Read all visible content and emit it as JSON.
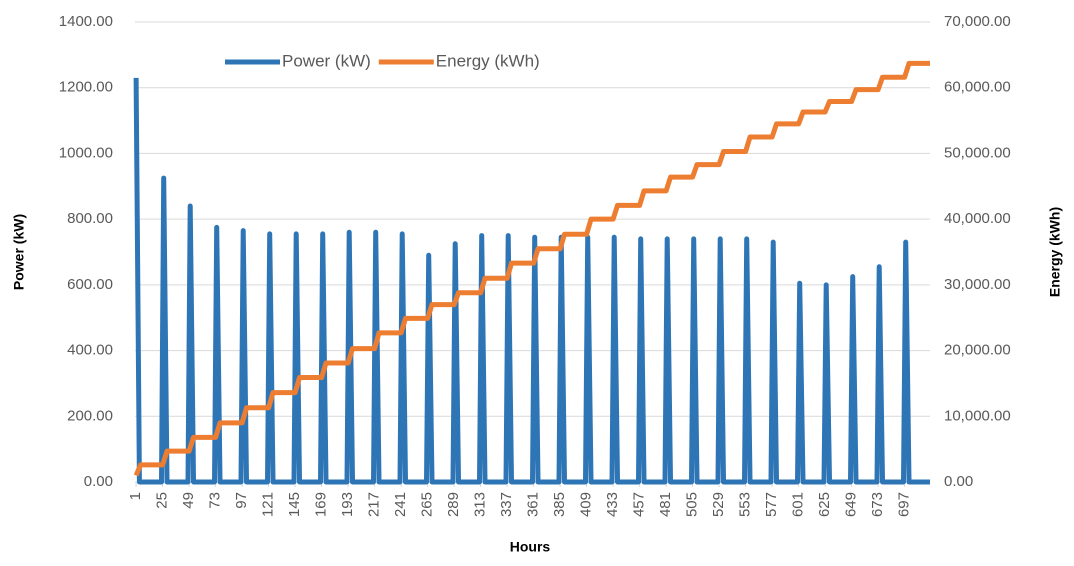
{
  "chart_data": {
    "type": "line",
    "x_label": "Hours",
    "y_label": "Power (kW)",
    "y2_label": "Energy (kWh)",
    "xlim": [
      0,
      720
    ],
    "xticks": [
      1,
      25,
      49,
      73,
      97,
      121,
      145,
      169,
      193,
      217,
      241,
      265,
      289,
      313,
      337,
      361,
      385,
      409,
      433,
      457,
      481,
      505,
      529,
      553,
      577,
      601,
      625,
      649,
      673,
      697
    ],
    "ylim": [
      0,
      1400
    ],
    "yticks": [
      {
        "value": 0,
        "label": "0.00"
      },
      {
        "value": 200,
        "label": "200.00"
      },
      {
        "value": 400,
        "label": "400.00"
      },
      {
        "value": 600,
        "label": "600.00"
      },
      {
        "value": 800,
        "label": "800.00"
      },
      {
        "value": 1000,
        "label": "1000.00"
      },
      {
        "value": 1200,
        "label": "1200.00"
      },
      {
        "value": 1400,
        "label": "1400.00"
      }
    ],
    "y2lim": [
      0,
      70000
    ],
    "y2ticks": [
      {
        "value": 0,
        "label": "0.00"
      },
      {
        "value": 10000,
        "label": "10,000.00"
      },
      {
        "value": 20000,
        "label": "20,000.00"
      },
      {
        "value": 30000,
        "label": "30,000.00"
      },
      {
        "value": 40000,
        "label": "40,000.00"
      },
      {
        "value": 50000,
        "label": "50,000.00"
      },
      {
        "value": 60000,
        "label": "60,000.00"
      },
      {
        "value": 70000,
        "label": "70,000.00"
      }
    ],
    "grid": true,
    "legend": "top",
    "series": [
      {
        "name": "Power (kW)",
        "color": "#2e75b6",
        "x": [
          1,
          4,
          24,
          26,
          29,
          48,
          50,
          53,
          72,
          74,
          77,
          96,
          98,
          101,
          120,
          122,
          125,
          144,
          146,
          149,
          168,
          170,
          173,
          192,
          194,
          197,
          216,
          218,
          221,
          240,
          242,
          245,
          264,
          266,
          269,
          288,
          290,
          293,
          312,
          314,
          317,
          336,
          338,
          341,
          360,
          362,
          365,
          384,
          386,
          389,
          408,
          410,
          413,
          432,
          434,
          437,
          456,
          458,
          461,
          480,
          482,
          485,
          504,
          506,
          509,
          528,
          530,
          533,
          552,
          554,
          557,
          576,
          578,
          581,
          600,
          602,
          605,
          624,
          626,
          629,
          648,
          650,
          653,
          672,
          674,
          677,
          696,
          698,
          701,
          720
        ],
        "values": [
          1230,
          0,
          0,
          925,
          0,
          0,
          840,
          0,
          0,
          775,
          0,
          0,
          765,
          0,
          0,
          755,
          0,
          0,
          755,
          0,
          0,
          755,
          0,
          0,
          760,
          0,
          0,
          760,
          0,
          0,
          755,
          0,
          0,
          690,
          0,
          0,
          725,
          0,
          0,
          750,
          0,
          0,
          750,
          0,
          0,
          745,
          0,
          0,
          745,
          0,
          0,
          745,
          0,
          0,
          745,
          0,
          0,
          740,
          0,
          0,
          740,
          0,
          0,
          740,
          0,
          0,
          740,
          0,
          0,
          740,
          0,
          0,
          730,
          0,
          0,
          605,
          0,
          0,
          600,
          0,
          0,
          625,
          0,
          0,
          655,
          0,
          0,
          730,
          0,
          0
        ]
      },
      {
        "name": "Energy (kWh)",
        "color": "#ed7d31",
        "axis": "y2",
        "x": [
          1,
          5,
          25,
          29,
          49,
          53,
          73,
          77,
          97,
          101,
          121,
          125,
          145,
          149,
          169,
          173,
          193,
          197,
          217,
          221,
          241,
          245,
          265,
          269,
          289,
          293,
          313,
          317,
          337,
          341,
          361,
          365,
          385,
          389,
          409,
          413,
          433,
          437,
          457,
          461,
          481,
          485,
          505,
          509,
          529,
          533,
          553,
          557,
          577,
          581,
          601,
          605,
          625,
          629,
          649,
          653,
          673,
          677,
          697,
          701,
          720
        ],
        "values": [
          1000,
          2600,
          2600,
          4700,
          4700,
          6800,
          6800,
          9000,
          9000,
          11300,
          11300,
          13600,
          13600,
          15900,
          15900,
          18100,
          18100,
          20300,
          20300,
          22700,
          22700,
          24900,
          24900,
          27000,
          27000,
          28800,
          28800,
          31000,
          31000,
          33300,
          33300,
          35500,
          35500,
          37700,
          37700,
          40000,
          40000,
          42100,
          42100,
          44300,
          44300,
          46400,
          46400,
          48300,
          48300,
          50300,
          50300,
          52500,
          52500,
          54500,
          54500,
          56300,
          56300,
          57900,
          57900,
          59700,
          59700,
          61600,
          61600,
          63700,
          63700
        ]
      }
    ]
  }
}
